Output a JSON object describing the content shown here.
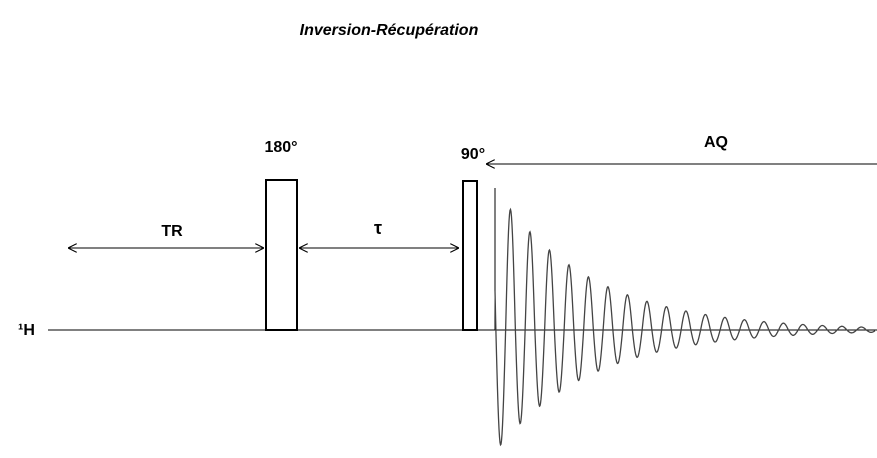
{
  "title": "Inversion-Récupération",
  "pulses": [
    {
      "label": "180°"
    },
    {
      "label": "90°"
    }
  ],
  "acquisition": {
    "label": "AQ"
  },
  "delays": [
    {
      "label": "TR"
    },
    {
      "label": "τ"
    }
  ],
  "channel": {
    "label": "¹H"
  }
}
